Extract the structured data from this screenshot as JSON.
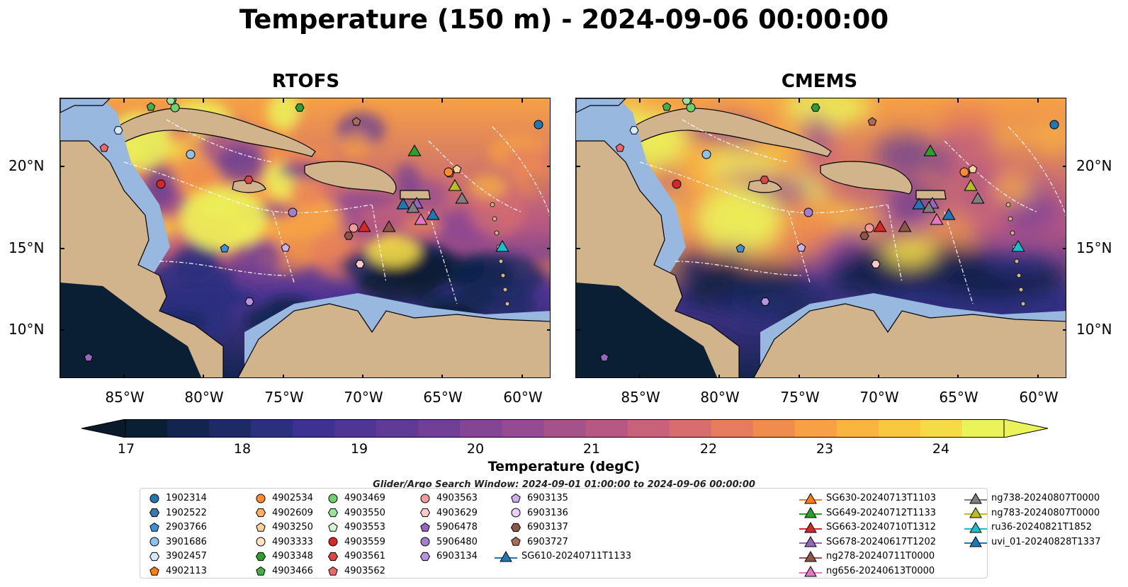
{
  "title": "Temperature (150 m) - 2024-09-06 00:00:00",
  "panels": [
    {
      "title": "RTOFS"
    },
    {
      "title": "CMEMS"
    }
  ],
  "lat_labels": [
    "20°N",
    "15°N",
    "10°N"
  ],
  "lon_labels": [
    "85°W",
    "80°W",
    "75°W",
    "70°W",
    "65°W",
    "60°W"
  ],
  "colorbar": {
    "label": "Temperature (degC)",
    "ticks": [
      "17",
      "18",
      "19",
      "20",
      "21",
      "22",
      "23",
      "24"
    ],
    "min": 17,
    "max": 24.5,
    "colors": [
      "#0a1f33",
      "#13254f",
      "#1d2a66",
      "#2c2f7e",
      "#3d3291",
      "#4f3594",
      "#603b96",
      "#713f95",
      "#834594",
      "#954b91",
      "#a6528a",
      "#b75883",
      "#c8617a",
      "#d86d6e",
      "#e67b5e",
      "#f08c4e",
      "#f7a045",
      "#fab440",
      "#f9c83f",
      "#f5dc46",
      "#ebf35a"
    ],
    "under_color": "#0a1a2a",
    "over_color": "#ebf35a"
  },
  "search_window": "Glider/Argo Search Window: 2024-09-01 01:00:00 to 2024-09-06 00:00:00",
  "colors": {
    "land": "#d2b48c",
    "shelf": "#99b8e0"
  },
  "legend": [
    {
      "label": "1902314",
      "marker": "circle",
      "color": "#1f77b4"
    },
    {
      "label": "1902522",
      "marker": "hexagon",
      "color": "#3a78b0"
    },
    {
      "label": "2903766",
      "marker": "pentagon",
      "color": "#3f8fd4"
    },
    {
      "label": "3901686",
      "marker": "circle",
      "color": "#8ec2ea"
    },
    {
      "label": "3902457",
      "marker": "hexagon",
      "color": "#d6ebfa"
    },
    {
      "label": "4902113",
      "marker": "pentagon",
      "color": "#ff7f0e"
    },
    {
      "label": "4902534",
      "marker": "circle",
      "color": "#ff8c2e"
    },
    {
      "label": "4902609",
      "marker": "hexagon",
      "color": "#ffb066"
    },
    {
      "label": "4903250",
      "marker": "pentagon",
      "color": "#ffd39a"
    },
    {
      "label": "4903333",
      "marker": "circle",
      "color": "#ffe6c8"
    },
    {
      "label": "4903348",
      "marker": "hexagon",
      "color": "#2ca02c"
    },
    {
      "label": "4903466",
      "marker": "pentagon",
      "color": "#44b044"
    },
    {
      "label": "4903469",
      "marker": "circle",
      "color": "#71cf71"
    },
    {
      "label": "4903550",
      "marker": "hexagon",
      "color": "#9be39b"
    },
    {
      "label": "4903553",
      "marker": "pentagon",
      "color": "#d5f5d0"
    },
    {
      "label": "4903559",
      "marker": "circle",
      "color": "#d62728"
    },
    {
      "label": "4903561",
      "marker": "hexagon",
      "color": "#dd4444"
    },
    {
      "label": "4903562",
      "marker": "pentagon",
      "color": "#ee6666"
    },
    {
      "label": "4903563",
      "marker": "circle",
      "color": "#f49a9a"
    },
    {
      "label": "4903629",
      "marker": "hexagon",
      "color": "#fbc9c9"
    },
    {
      "label": "5906478",
      "marker": "pentagon",
      "color": "#9467bd"
    },
    {
      "label": "5906480",
      "marker": "circle",
      "color": "#a37fcb"
    },
    {
      "label": "6903134",
      "marker": "hexagon",
      "color": "#b794dd"
    },
    {
      "label": "6903135",
      "marker": "pentagon",
      "color": "#cbb0ea"
    },
    {
      "label": "6903136",
      "marker": "circle",
      "color": "#e8d0f7"
    },
    {
      "label": "6903137",
      "marker": "hexagon",
      "color": "#8c564b"
    },
    {
      "label": "6903727",
      "marker": "pentagon",
      "color": "#a86b55"
    },
    {
      "label": "SG610-20240711T1133",
      "marker": "triangle-line",
      "color": "#1f77b4"
    },
    {
      "label": "SG630-20240713T1103",
      "marker": "triangle-line",
      "color": "#ff7f0e"
    },
    {
      "label": "SG649-20240712T1133",
      "marker": "triangle-line",
      "color": "#2ca02c"
    },
    {
      "label": "SG663-20240710T1312",
      "marker": "triangle-line",
      "color": "#d62728"
    },
    {
      "label": "SG678-20240617T1202",
      "marker": "triangle-line",
      "color": "#9467bd"
    },
    {
      "label": "ng278-20240711T0000",
      "marker": "triangle-line",
      "color": "#8c564b"
    },
    {
      "label": "ng656-20240613T0000",
      "marker": "triangle-line",
      "color": "#e377c2"
    },
    {
      "label": "ng738-20240807T0000",
      "marker": "triangle-line",
      "color": "#7f7f7f"
    },
    {
      "label": "ng783-20240807T0000",
      "marker": "triangle-line",
      "color": "#bcbd22"
    },
    {
      "label": "ru36-20240821T1852",
      "marker": "triangle-line",
      "color": "#17becf"
    },
    {
      "label": "uvi_01-20240828T1337",
      "marker": "triangle-line",
      "color": "#1f77b4"
    }
  ]
}
